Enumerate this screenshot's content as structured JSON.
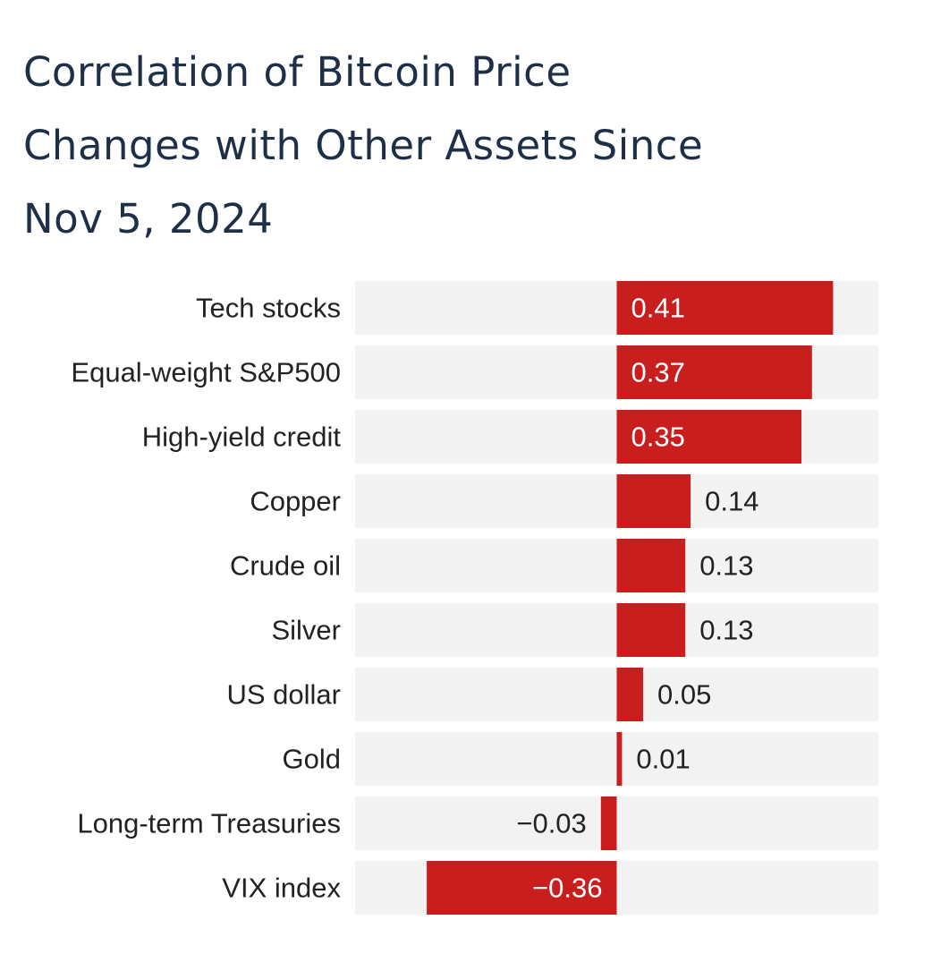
{
  "chart_data": {
    "type": "bar",
    "orientation": "horizontal",
    "title": "Correlation of Bitcoin Price Changes with Other Assets Since Nov 5, 2024",
    "title_lines": [
      "Correlation of Bitcoin Price",
      "Changes with Other Assets Since",
      "Nov 5, 2024"
    ],
    "categories": [
      "Tech stocks",
      "Equal-weight S&P500",
      "High-yield credit",
      "Copper",
      "Crude oil",
      "Silver",
      "US dollar",
      "Gold",
      "Long-term Treasuries",
      "VIX index"
    ],
    "values": [
      0.41,
      0.37,
      0.35,
      0.14,
      0.13,
      0.13,
      0.05,
      0.01,
      -0.03,
      -0.36
    ],
    "value_labels": [
      "0.41",
      "0.37",
      "0.35",
      "0.14",
      "0.13",
      "0.13",
      "0.05",
      "0.01",
      "−0.03",
      "−0.36"
    ],
    "xlim": [
      -0.5,
      0.5
    ],
    "xlabel": "",
    "ylabel": "",
    "grid": false,
    "legend": "none",
    "colors": {
      "bar": "#c91e1e",
      "track": "#f2f2f2",
      "title": "#1d3047",
      "label_dark": "#222222",
      "label_light": "#ffffff"
    }
  }
}
